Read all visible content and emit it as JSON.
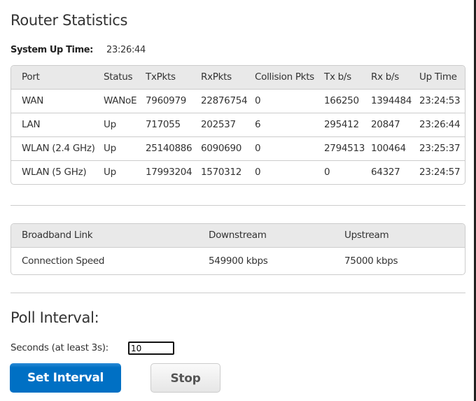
{
  "title": "Router Statistics",
  "system_up_time": {
    "label": "System Up Time:",
    "value": "23:26:44"
  },
  "ports_table": {
    "headers": [
      "Port",
      "Status",
      "TxPkts",
      "RxPkts",
      "Collision Pkts",
      "Tx b/s",
      "Rx b/s",
      "Up Time"
    ],
    "rows": [
      [
        "WAN",
        "WANoE",
        "7960979",
        "22876754",
        "0",
        "166250",
        "1394484",
        "23:24:53"
      ],
      [
        "LAN",
        "Up",
        "717055",
        "202537",
        "6",
        "295412",
        "20847",
        "23:26:44"
      ],
      [
        "WLAN (2.4 GHz)",
        "Up",
        "25140886",
        "6090690",
        "0",
        "2794513",
        "100464",
        "23:25:37"
      ],
      [
        "WLAN (5 GHz)",
        "Up",
        "17993204",
        "1570312",
        "0",
        "0",
        "64327",
        "23:24:57"
      ]
    ]
  },
  "broadband_table": {
    "headers": [
      "Broadband Link",
      "Downstream",
      "Upstream"
    ],
    "rows": [
      [
        "Connection Speed",
        "549900 kbps",
        "75000 kbps"
      ]
    ]
  },
  "poll": {
    "title": "Poll Interval:",
    "seconds_label": "Seconds (at least 3s):",
    "seconds_value": "10",
    "set_label": "Set Interval",
    "stop_label": "Stop"
  },
  "colors": {
    "primary_button": "#0070c4",
    "border": "#cccccc",
    "header_bg": "#e9e9e9"
  }
}
